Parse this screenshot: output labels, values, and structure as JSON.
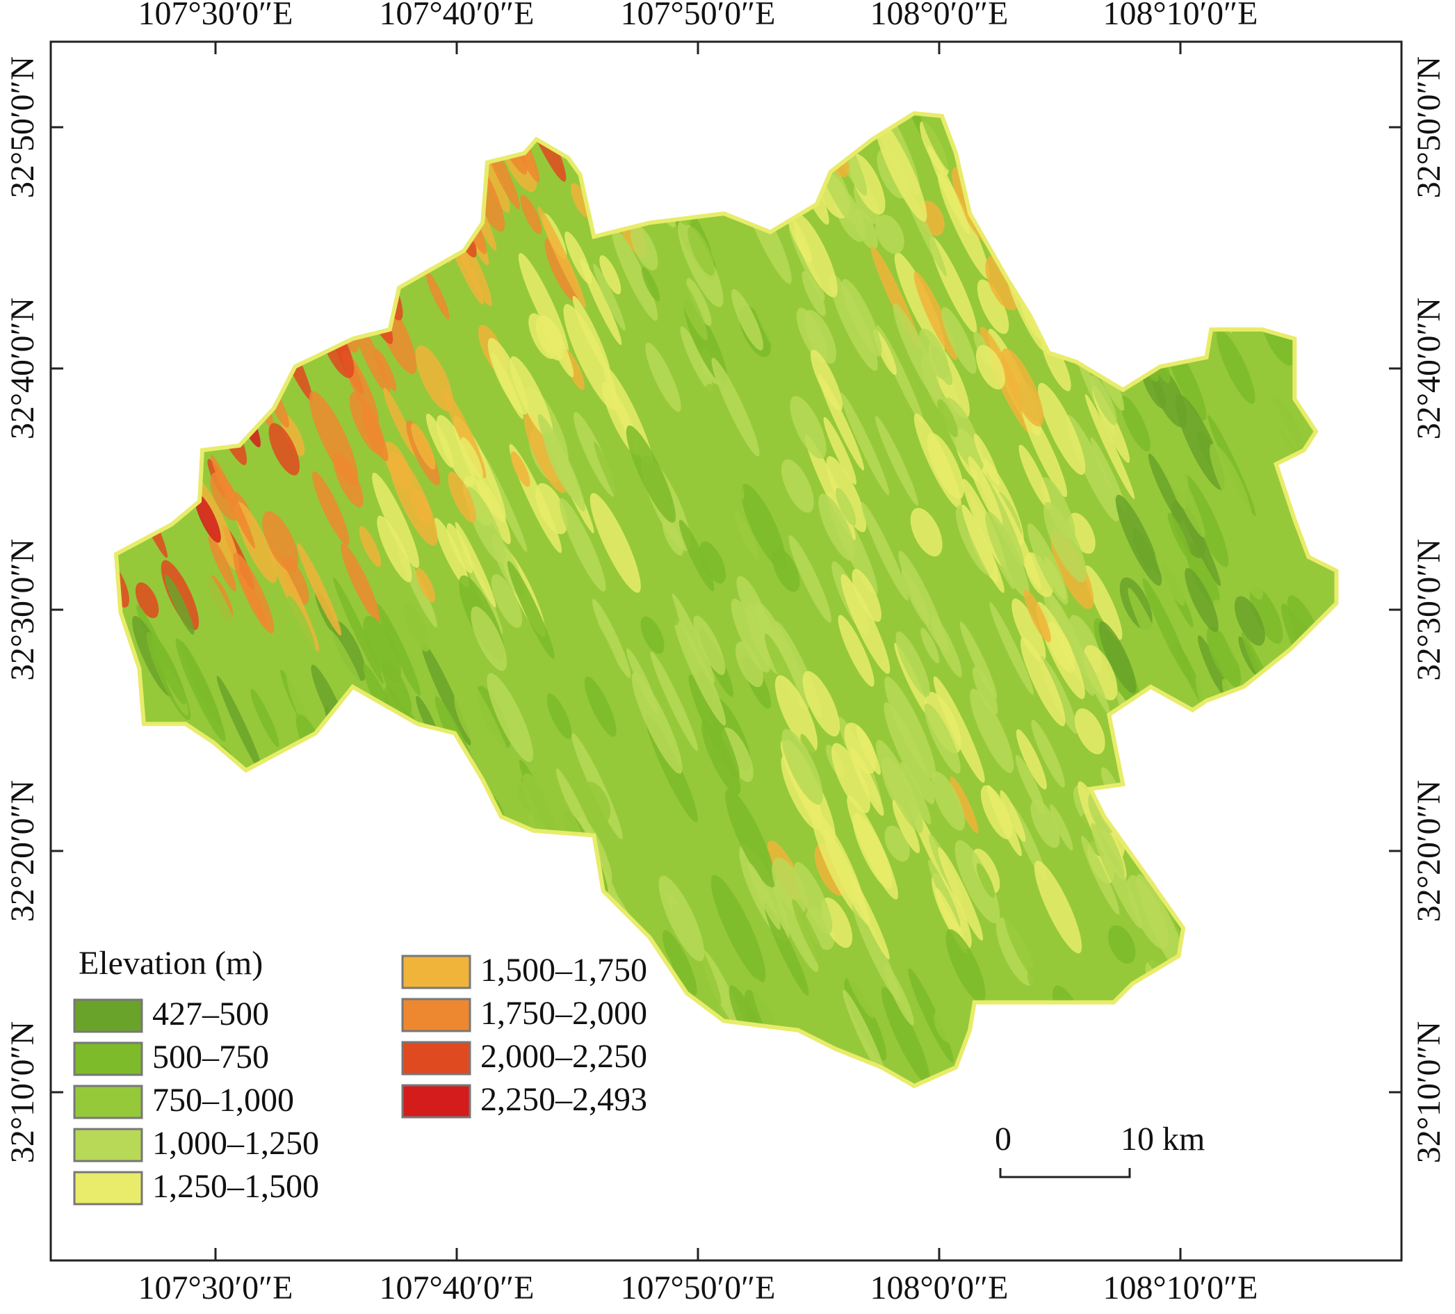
{
  "map": {
    "longitude_labels": [
      "107°30′0″E",
      "107°40′0″E",
      "107°50′0″E",
      "108°0′0″E",
      "108°10′0″E"
    ],
    "latitude_labels": [
      "32°50′0″N",
      "32°40′0″N",
      "32°30′0″N",
      "32°20′0″N",
      "32°10′0″N"
    ],
    "legend": {
      "title": "Elevation (m)",
      "items": [
        {
          "label": "427–500",
          "color": "#6aa329"
        },
        {
          "label": "500–750",
          "color": "#7dbb2a"
        },
        {
          "label": "750–1,000",
          "color": "#95c93a"
        },
        {
          "label": "1,000–1,250",
          "color": "#b7d957"
        },
        {
          "label": "1,250–1,500",
          "color": "#e8ec6a"
        },
        {
          "label": "1,500–1,750",
          "color": "#f0b43a"
        },
        {
          "label": "1,750–2,000",
          "color": "#ee8830"
        },
        {
          "label": "2,000–2,250",
          "color": "#e04a20"
        },
        {
          "label": "2,250–2,493",
          "color": "#d41c1c"
        }
      ]
    },
    "scale_bar": {
      "start": "0",
      "end": "10 km"
    }
  }
}
